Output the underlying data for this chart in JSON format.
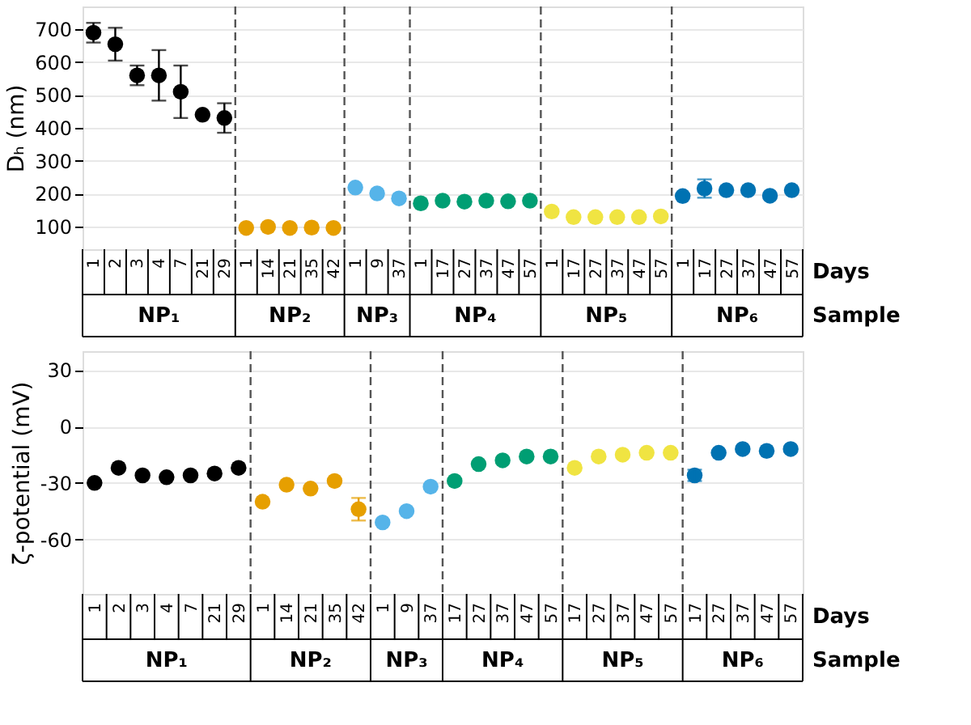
{
  "chart_data": [
    {
      "type": "scatter",
      "ylabel": "Dₕ (nm)",
      "xlabel": "Days",
      "marker": "circle",
      "grid": "y",
      "categories": [
        "1",
        "2",
        "3",
        "4",
        "7",
        "21",
        "29",
        "1",
        "14",
        "21",
        "35",
        "42",
        "1",
        "9",
        "37",
        "1",
        "17",
        "27",
        "37",
        "47",
        "57",
        "1",
        "17",
        "27",
        "37",
        "47",
        "57",
        "1",
        "17",
        "27",
        "37",
        "47",
        "57"
      ],
      "ylim": [
        30,
        770
      ],
      "yticks": [
        100,
        200,
        300,
        400,
        500,
        600,
        700
      ],
      "series": [
        {
          "color": "#000000",
          "values": [
            690,
            655,
            560,
            560,
            510,
            440,
            430,
            null,
            null,
            null,
            null,
            null,
            null,
            null,
            null,
            null,
            null,
            null,
            null,
            null,
            null,
            null,
            null,
            null,
            null,
            null,
            null,
            null,
            null,
            null,
            null,
            null,
            null
          ],
          "errors": [
            30,
            50,
            30,
            77,
            80,
            null,
            45,
            null,
            null,
            null,
            null,
            null,
            null,
            null,
            null,
            null,
            null,
            null,
            null,
            null,
            null,
            null,
            null,
            null,
            null,
            null,
            null,
            null,
            null,
            null,
            null,
            null,
            null
          ]
        },
        {
          "color": "#e69f00",
          "values": [
            null,
            null,
            null,
            null,
            null,
            null,
            null,
            95,
            98,
            95,
            96,
            95,
            null,
            null,
            null,
            null,
            null,
            null,
            null,
            null,
            null,
            null,
            null,
            null,
            null,
            null,
            null,
            null,
            null,
            null,
            null,
            null,
            null
          ]
        },
        {
          "color": "#56b4e9",
          "values": [
            null,
            null,
            null,
            null,
            null,
            null,
            null,
            null,
            null,
            null,
            null,
            null,
            218,
            200,
            185,
            null,
            null,
            null,
            null,
            null,
            null,
            null,
            null,
            null,
            null,
            null,
            null,
            null,
            null,
            null,
            null,
            null,
            null
          ]
        },
        {
          "color": "#009e73",
          "values": [
            null,
            null,
            null,
            null,
            null,
            null,
            null,
            null,
            null,
            null,
            null,
            null,
            null,
            null,
            null,
            170,
            178,
            175,
            178,
            176,
            178,
            null,
            null,
            null,
            null,
            null,
            null,
            null,
            null,
            null,
            null,
            null,
            null
          ]
        },
        {
          "color": "#f0e442",
          "values": [
            null,
            null,
            null,
            null,
            null,
            null,
            null,
            null,
            null,
            null,
            null,
            null,
            null,
            null,
            null,
            null,
            null,
            null,
            null,
            null,
            null,
            145,
            128,
            128,
            128,
            128,
            130,
            null,
            null,
            null,
            null,
            null,
            null
          ]
        },
        {
          "color": "#0072b2",
          "values": [
            null,
            null,
            null,
            null,
            null,
            null,
            null,
            null,
            null,
            null,
            null,
            null,
            null,
            null,
            null,
            null,
            null,
            null,
            null,
            null,
            null,
            null,
            null,
            null,
            null,
            null,
            null,
            192,
            215,
            210,
            210,
            193,
            210
          ],
          "errors": [
            null,
            null,
            null,
            null,
            null,
            null,
            null,
            null,
            null,
            null,
            null,
            null,
            null,
            null,
            null,
            null,
            null,
            null,
            null,
            null,
            null,
            null,
            null,
            null,
            null,
            null,
            null,
            null,
            28,
            null,
            null,
            null,
            null
          ]
        }
      ],
      "annotations": [
        "NP₁",
        "NP₂",
        "NP₃",
        "NP₄",
        "NP₅",
        "NP₆",
        "Sample"
      ]
    },
    {
      "type": "scatter",
      "ylabel": "ζ-potential (mV)",
      "xlabel": "Days",
      "marker": "circle",
      "grid": "y",
      "categories": [
        "1",
        "2",
        "3",
        "4",
        "7",
        "21",
        "29",
        "1",
        "14",
        "21",
        "35",
        "42",
        "1",
        "9",
        "37",
        "17",
        "27",
        "37",
        "47",
        "57",
        "17",
        "27",
        "37",
        "47",
        "57",
        "17",
        "27",
        "37",
        "47",
        "57"
      ],
      "ylim": [
        -89,
        40
      ],
      "yticks": [
        -60,
        -30,
        0,
        30
      ],
      "series": [
        {
          "color": "#000000",
          "values": [
            -30,
            -22,
            -26,
            -27,
            -26,
            -25,
            -22,
            null,
            null,
            null,
            null,
            null,
            null,
            null,
            null,
            null,
            null,
            null,
            null,
            null,
            null,
            null,
            null,
            null,
            null,
            null,
            null,
            null,
            null,
            null
          ]
        },
        {
          "color": "#e69f00",
          "values": [
            null,
            null,
            null,
            null,
            null,
            null,
            null,
            -40,
            -31,
            -33,
            -29,
            -44,
            null,
            null,
            null,
            null,
            null,
            null,
            null,
            null,
            null,
            null,
            null,
            null,
            null,
            null,
            null,
            null,
            null,
            null
          ],
          "errors": [
            null,
            null,
            null,
            null,
            null,
            null,
            null,
            null,
            null,
            null,
            null,
            6,
            null,
            null,
            null,
            null,
            null,
            null,
            null,
            null,
            null,
            null,
            null,
            null,
            null,
            null,
            null,
            null,
            null,
            null
          ]
        },
        {
          "color": "#56b4e9",
          "values": [
            null,
            null,
            null,
            null,
            null,
            null,
            null,
            null,
            null,
            null,
            null,
            null,
            -51,
            -45,
            -32,
            null,
            null,
            null,
            null,
            null,
            null,
            null,
            null,
            null,
            null,
            null,
            null,
            null,
            null,
            null
          ]
        },
        {
          "color": "#009e73",
          "values": [
            null,
            null,
            null,
            null,
            null,
            null,
            null,
            null,
            null,
            null,
            null,
            null,
            null,
            null,
            null,
            -29,
            -20,
            -18,
            -16,
            -16,
            null,
            null,
            null,
            null,
            null,
            null,
            null,
            null,
            null,
            null
          ]
        },
        {
          "color": "#f0e442",
          "values": [
            null,
            null,
            null,
            null,
            null,
            null,
            null,
            null,
            null,
            null,
            null,
            null,
            null,
            null,
            null,
            null,
            null,
            null,
            null,
            null,
            -22,
            -16,
            -15,
            -14,
            -14,
            null,
            null,
            null,
            null,
            null
          ]
        },
        {
          "color": "#0072b2",
          "values": [
            null,
            null,
            null,
            null,
            null,
            null,
            null,
            null,
            null,
            null,
            null,
            null,
            null,
            null,
            null,
            null,
            null,
            null,
            null,
            null,
            null,
            null,
            null,
            null,
            null,
            -26,
            -14,
            -12,
            -13,
            -12
          ],
          "errors": [
            null,
            null,
            null,
            null,
            null,
            null,
            null,
            null,
            null,
            null,
            null,
            null,
            null,
            null,
            null,
            null,
            null,
            null,
            null,
            null,
            null,
            null,
            null,
            null,
            null,
            3,
            null,
            null,
            null,
            null
          ]
        }
      ],
      "annotations": [
        "NP₁",
        "NP₂",
        "NP₃",
        "NP₄",
        "NP₅",
        "NP₆",
        "Sample"
      ]
    }
  ]
}
